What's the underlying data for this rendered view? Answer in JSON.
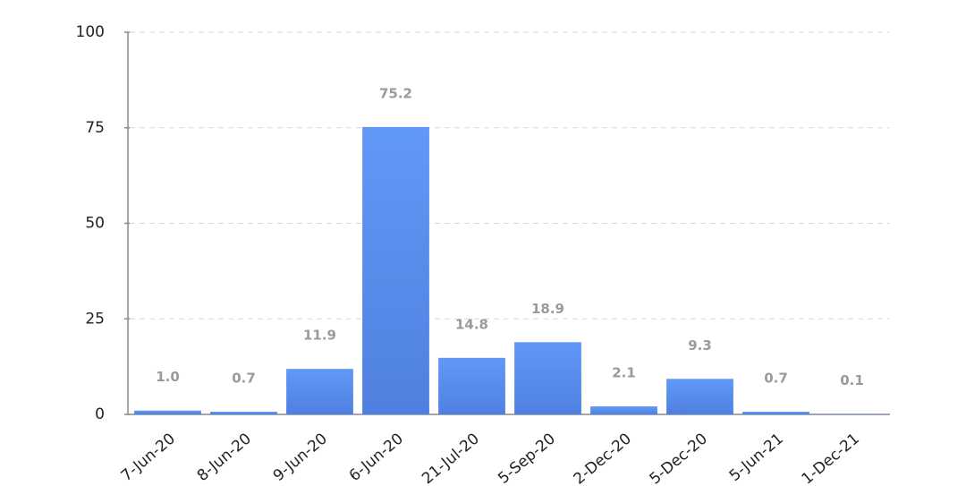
{
  "chart_data": {
    "type": "bar",
    "categories": [
      "7-Jun-20",
      "8-Jun-20",
      "9-Jun-20",
      "6-Jun-20",
      "21-Jul-20",
      "5-Sep-20",
      "2-Dec-20",
      "5-Dec-20",
      "5-Jun-21",
      "1-Dec-21"
    ],
    "values": [
      1.0,
      0.7,
      11.9,
      75.2,
      14.8,
      18.9,
      2.1,
      9.3,
      0.7,
      0.1
    ],
    "value_labels": [
      "1.0",
      "0.7",
      "11.9",
      "75.2",
      "14.8",
      "18.9",
      "2.1",
      "9.3",
      "0.7",
      "0.1"
    ],
    "color": "#5b8ff0",
    "ylim": [
      0,
      100
    ],
    "yticks": [
      0,
      25,
      50,
      75,
      100
    ],
    "grid": true
  }
}
